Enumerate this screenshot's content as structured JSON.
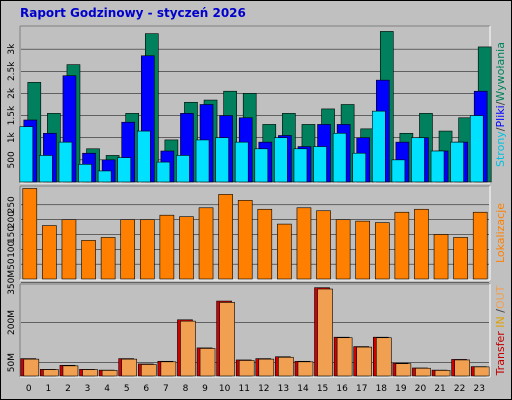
{
  "title": "Raport Godzinowy -   styczeń 2026",
  "colors": {
    "background": "#c0c0c0",
    "plot_bg": "#c0c0c0",
    "title": "#0000cc",
    "hits": "#00805c",
    "files": "#0000ff",
    "pages": "#00e0ff",
    "visits": "#ff8000",
    "sites": "#ff8000",
    "kbytes_in": "#d00000",
    "kbytes_out": "#f0a050"
  },
  "chart_data": [
    {
      "type": "bar",
      "name": "requests-chart",
      "categories": [
        "0",
        "1",
        "2",
        "3",
        "4",
        "5",
        "6",
        "7",
        "8",
        "9",
        "10",
        "11",
        "12",
        "13",
        "14",
        "15",
        "16",
        "17",
        "18",
        "19",
        "20",
        "21",
        "22",
        "23"
      ],
      "series": [
        {
          "name": "Strony",
          "values": [
            1250,
            600,
            900,
            400,
            250,
            550,
            1150,
            450,
            600,
            950,
            1000,
            900,
            750,
            1000,
            750,
            800,
            1100,
            650,
            1600,
            500,
            1000,
            700,
            900,
            1500
          ]
        },
        {
          "name": "Pliki",
          "values": [
            1400,
            1100,
            2400,
            650,
            500,
            1350,
            2850,
            700,
            1550,
            1750,
            1500,
            1450,
            900,
            1050,
            800,
            1300,
            1300,
            1000,
            2300,
            900,
            1000,
            700,
            900,
            2050
          ]
        },
        {
          "name": "Wywołania",
          "values": [
            2250,
            1550,
            2650,
            750,
            600,
            1550,
            3350,
            950,
            1800,
            1850,
            2050,
            2000,
            1300,
            1550,
            1300,
            1650,
            1750,
            1200,
            3400,
            1100,
            1550,
            1150,
            1450,
            3050
          ]
        }
      ],
      "yticks": [
        "500",
        "1k",
        "1.5k",
        "2k",
        "2.5k",
        "3k"
      ],
      "ytick_values": [
        500,
        1000,
        1500,
        2000,
        2500,
        3000
      ],
      "ylim": [
        0,
        3500
      ],
      "side_label_parts": [
        {
          "text": "Strony",
          "color": "#00c0e0"
        },
        {
          "text": "/",
          "color": "#404040"
        },
        {
          "text": "Pliki",
          "color": "#0000ff"
        },
        {
          "text": "/",
          "color": "#404040"
        },
        {
          "text": "Wywołania",
          "color": "#00805c"
        }
      ]
    },
    {
      "type": "bar",
      "name": "visits-chart",
      "categories": [
        "0",
        "1",
        "2",
        "3",
        "4",
        "5",
        "6",
        "7",
        "8",
        "9",
        "10",
        "11",
        "12",
        "13",
        "14",
        "15",
        "16",
        "17",
        "18",
        "19",
        "20",
        "21",
        "22",
        "23"
      ],
      "series": [
        {
          "name": "Lokalizacje",
          "values": [
            305,
            180,
            200,
            130,
            140,
            200,
            200,
            215,
            210,
            240,
            285,
            265,
            235,
            185,
            240,
            230,
            200,
            195,
            190,
            225,
            235,
            150,
            140,
            225
          ]
        }
      ],
      "yticks": [
        "50",
        "100",
        "150",
        "200",
        "250"
      ],
      "ytick_values": [
        50,
        100,
        150,
        200,
        250
      ],
      "ylim": [
        0,
        310
      ],
      "side_label_parts": [
        {
          "text": "Lokalizacje",
          "color": "#ff8000"
        }
      ]
    },
    {
      "type": "bar",
      "name": "transfer-chart",
      "categories": [
        "0",
        "1",
        "2",
        "3",
        "4",
        "5",
        "6",
        "7",
        "8",
        "9",
        "10",
        "11",
        "12",
        "13",
        "14",
        "15",
        "16",
        "17",
        "18",
        "19",
        "20",
        "21",
        "22",
        "23"
      ],
      "series": [
        {
          "name": "IN",
          "values": [
            65,
            25,
            40,
            25,
            22,
            65,
            45,
            55,
            210,
            105,
            280,
            60,
            65,
            72,
            55,
            330,
            145,
            110,
            145,
            48,
            30,
            22,
            62,
            35
          ]
        },
        {
          "name": "OUT",
          "values": [
            63,
            24,
            38,
            24,
            21,
            63,
            43,
            53,
            205,
            103,
            275,
            58,
            63,
            70,
            53,
            325,
            143,
            108,
            143,
            46,
            29,
            21,
            60,
            34
          ]
        }
      ],
      "yticks": [
        "50M",
        "200M",
        "350M"
      ],
      "ytick_values": [
        50,
        200,
        350
      ],
      "ylim": [
        0,
        340
      ],
      "side_label_parts": [
        {
          "text": "Transfer",
          "color": "#c00000"
        },
        {
          "text": " IN ",
          "color": "#e0a000"
        },
        {
          "text": "/",
          "color": "#404040"
        },
        {
          "text": "OUT",
          "color": "#f0a050"
        }
      ]
    }
  ]
}
